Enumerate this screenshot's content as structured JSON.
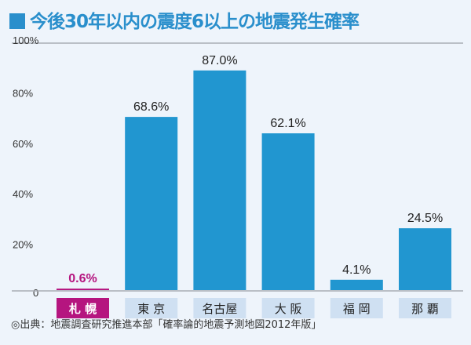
{
  "chart_data": {
    "type": "bar",
    "title": "今後30年以内の震度6以上の地震発生確率",
    "categories": [
      "札 幌",
      "東 京",
      "名古屋",
      "大 阪",
      "福 岡",
      "那 覇"
    ],
    "values": [
      0.6,
      68.6,
      87.0,
      62.1,
      4.1,
      24.5
    ],
    "data_labels": [
      "0.6%",
      "68.6%",
      "87.0%",
      "62.1%",
      "4.1%",
      "24.5%"
    ],
    "ylim": [
      0,
      100
    ],
    "yticks": [
      0,
      20,
      40,
      60,
      80,
      100
    ],
    "ytick_labels": [
      "0",
      "20%",
      "40%",
      "60%",
      "80%",
      "100%"
    ],
    "grid": false,
    "highlight_index": 0,
    "colors": {
      "bar": "#2196d0",
      "highlight": "#b5157f",
      "label_bg": "#cfe0f2",
      "title": "#2a8fcc"
    }
  },
  "source": "◎出典：地震調査研究推進本部「確率論的地震予測地図2012年版」"
}
